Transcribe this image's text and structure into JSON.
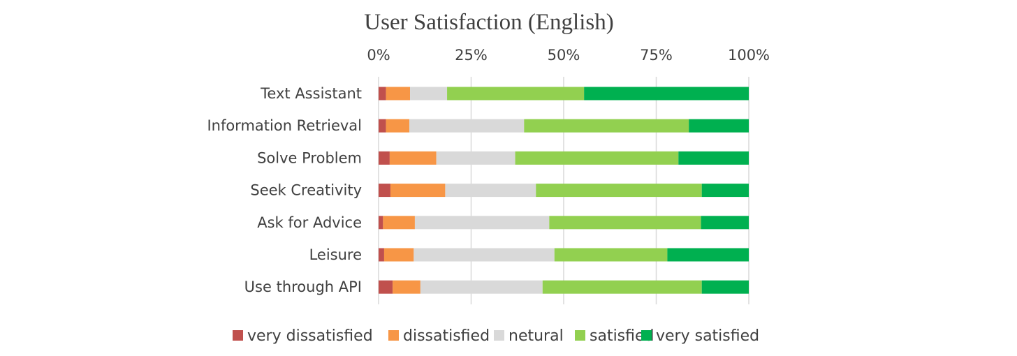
{
  "chart_data": {
    "type": "bar",
    "orientation": "horizontal",
    "stacked": "100%",
    "title": "User Satisfaction (English)",
    "x_ticks": [
      "0%",
      "25%",
      "50%",
      "75%",
      "100%"
    ],
    "xlim": [
      0,
      100
    ],
    "x_axis_position": "top",
    "grid": true,
    "legend_position": "bottom",
    "categories": [
      "Text Assistant",
      "Information Retrieval",
      "Solve Problem",
      "Seek Creativity",
      "Ask for Advice",
      "Leisure",
      "Use through API"
    ],
    "series": [
      {
        "name": "very dissatisfied",
        "color": "#c0504d",
        "values": [
          2.0,
          2.0,
          3.0,
          3.2,
          1.2,
          1.5,
          3.8
        ]
      },
      {
        "name": "dissatisfied",
        "color": "#f79646",
        "values": [
          6.5,
          6.3,
          12.6,
          14.8,
          8.6,
          8.0,
          7.5
        ]
      },
      {
        "name": "netural",
        "color": "#d9d9d9",
        "values": [
          10.0,
          31.0,
          21.3,
          24.5,
          36.3,
          38.0,
          33.0
        ]
      },
      {
        "name": "satisfied",
        "color": "#92d050",
        "values": [
          37.0,
          44.5,
          44.1,
          44.8,
          41.0,
          30.5,
          43.0
        ]
      },
      {
        "name": "very satisfied",
        "color": "#00b050",
        "values": [
          44.5,
          16.2,
          19.0,
          12.7,
          12.9,
          22.0,
          12.7
        ]
      }
    ]
  }
}
